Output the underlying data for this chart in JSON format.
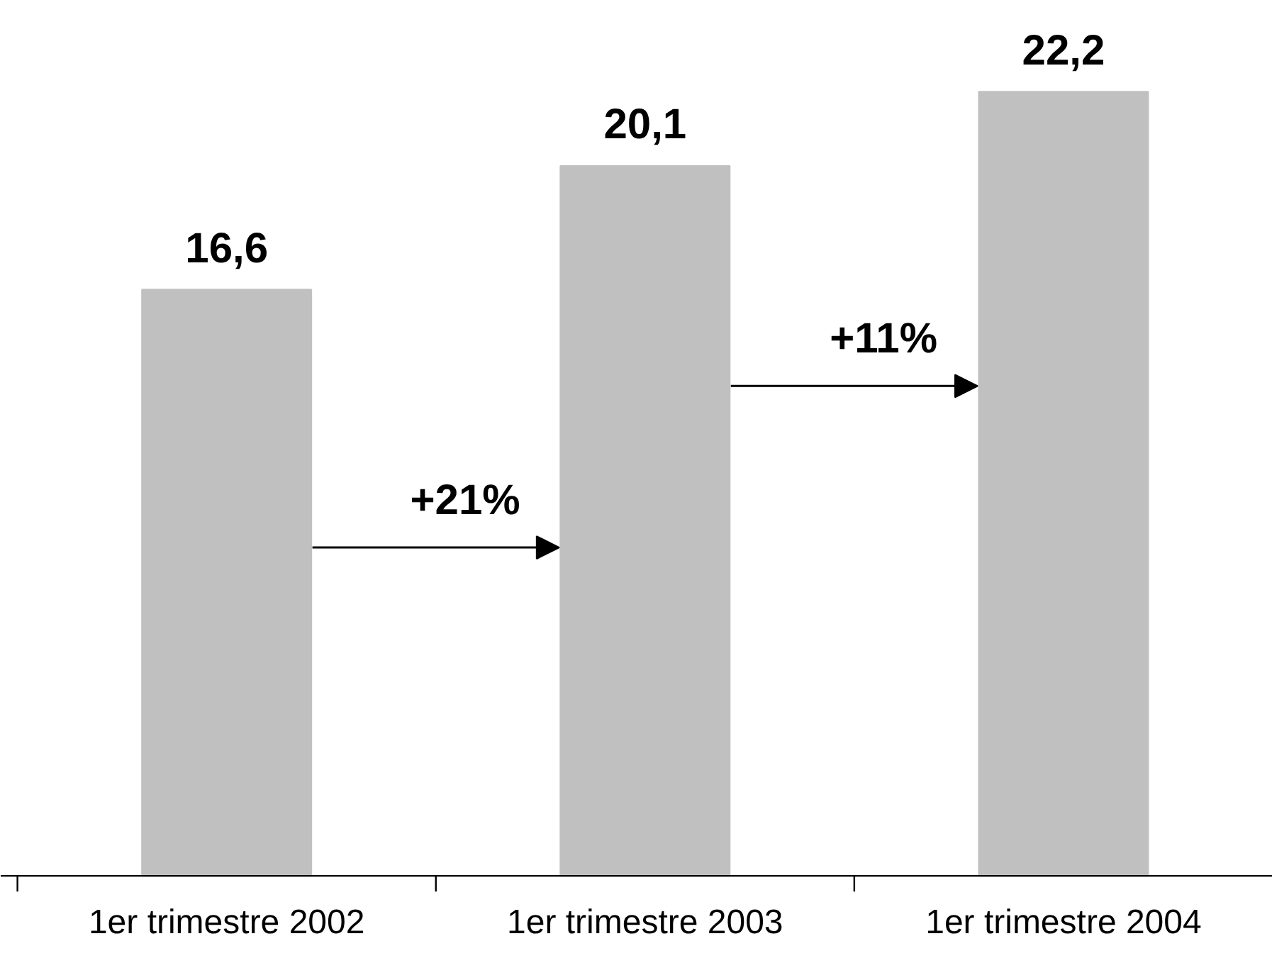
{
  "chart_data": {
    "type": "bar",
    "categories": [
      "1er trimestre 2002",
      "1er trimestre 2003",
      "1er trimestre 2004"
    ],
    "values": [
      16.6,
      20.1,
      22.2
    ],
    "value_labels": [
      "16,6",
      "20,1",
      "22,2"
    ],
    "color": "#c0c0c0",
    "annotations": [
      "+21%",
      "+11%"
    ]
  }
}
